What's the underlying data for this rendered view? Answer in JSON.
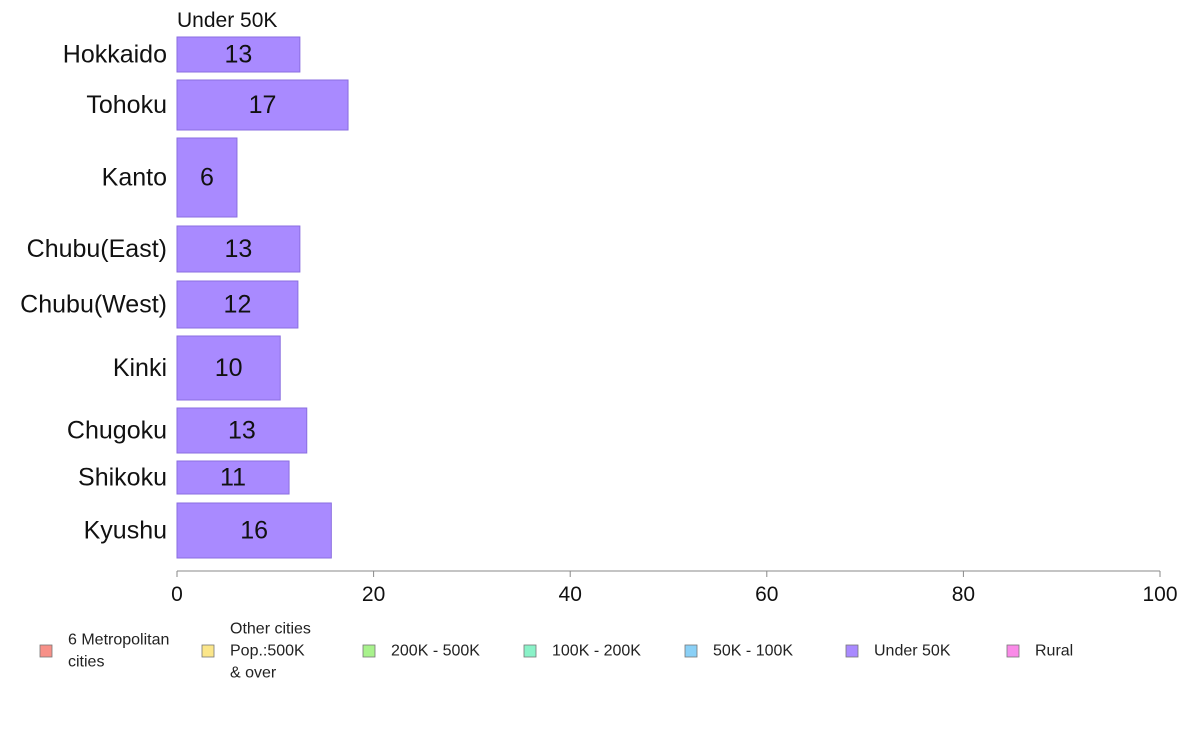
{
  "chart_data": {
    "type": "bar",
    "orientation": "horizontal",
    "series_header": "Under 50K",
    "categories": [
      "Hokkaido",
      "Tohoku",
      "Kanto",
      "Chubu(East)",
      "Chubu(West)",
      "Kinki",
      "Chugoku",
      "Shikoku",
      "Kyushu"
    ],
    "values": [
      13,
      17,
      6,
      13,
      12,
      10,
      13,
      11,
      16
    ],
    "bar_lengths": [
      12.5,
      17.4,
      6.1,
      12.5,
      12.3,
      10.5,
      13.2,
      11.4,
      15.7
    ],
    "xlim": [
      0,
      100
    ],
    "xticks": [
      0,
      20,
      40,
      60,
      80,
      100
    ],
    "bar_color": "#a98aff",
    "bar_edge_color": "#8a6ee0",
    "legend_position": "bottom",
    "legend": [
      {
        "lines": [
          "6 Metropolitan",
          " cities"
        ],
        "color": "#f79088"
      },
      {
        "lines": [
          "Other cities",
          "Pop.:500K",
          " & over"
        ],
        "color": "#fbe68a"
      },
      {
        "lines": [
          "200K - 500K"
        ],
        "color": "#a8f28c"
      },
      {
        "lines": [
          "100K - 200K"
        ],
        "color": "#8af2c8"
      },
      {
        "lines": [
          "50K - 100K"
        ],
        "color": "#8ad0f6"
      },
      {
        "lines": [
          "Under 50K"
        ],
        "color": "#a98aff"
      },
      {
        "lines": [
          "Rural"
        ],
        "color": "#fa8ae8"
      }
    ]
  }
}
